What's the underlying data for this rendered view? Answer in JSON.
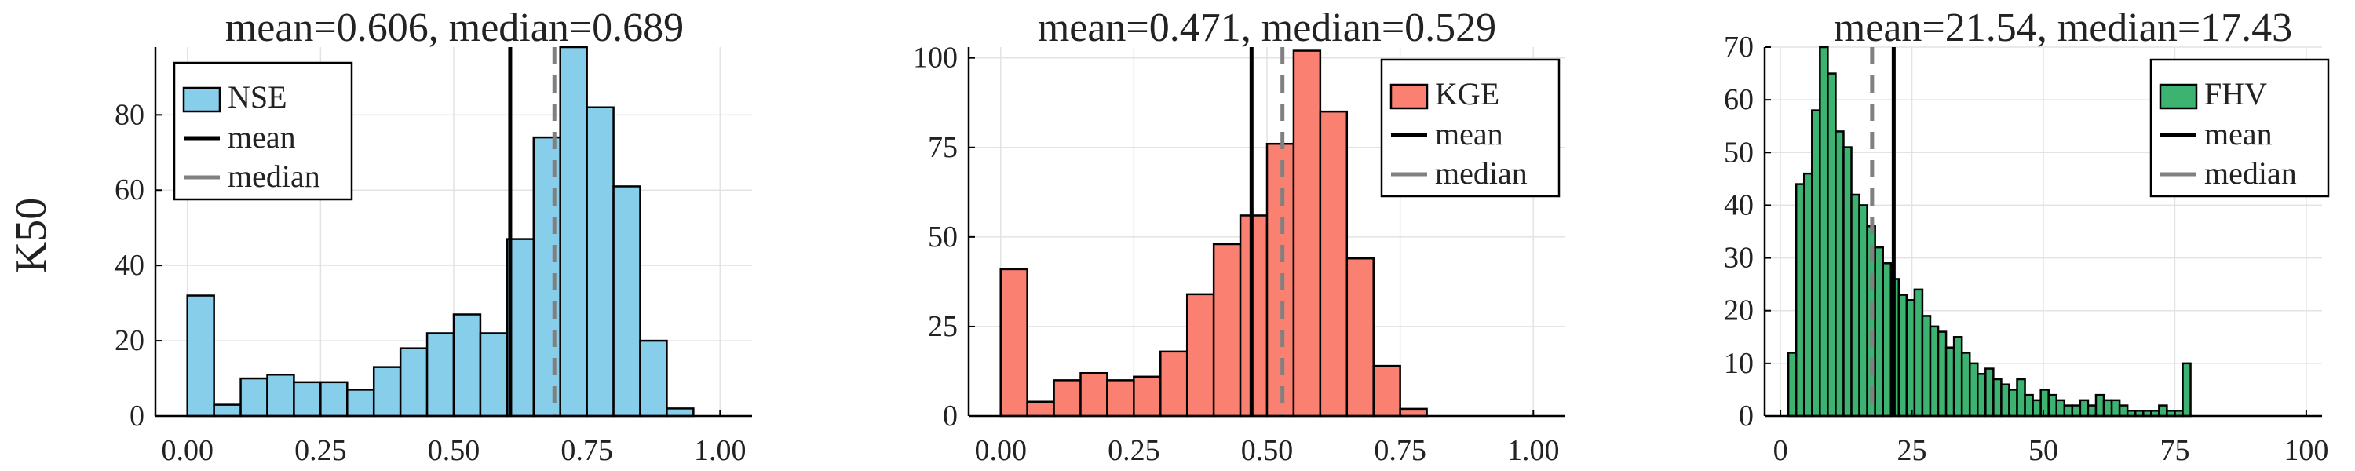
{
  "figure": {
    "row_label": "K50"
  },
  "colors": {
    "nse": "#87CEEB",
    "kge": "#FA8072",
    "fhv": "#3CB371",
    "mean": "#000000",
    "median": "#808080"
  },
  "chart_data": [
    {
      "type": "bar",
      "title": "mean=0.606, median=0.689",
      "xlabel": "",
      "ylabel": "K50",
      "xlim": [
        -0.06,
        1.06
      ],
      "ylim": [
        0,
        98
      ],
      "xticks": [
        0.0,
        0.25,
        0.5,
        0.75,
        1.0
      ],
      "xtick_labels": [
        "0.00",
        "0.25",
        "0.50",
        "0.75",
        "1.00"
      ],
      "yticks": [
        0,
        20,
        40,
        60,
        80
      ],
      "grid": true,
      "legend_position": "top-left",
      "bin_width": 0.05,
      "bin_starts": [
        0.0,
        0.05,
        0.1,
        0.15,
        0.2,
        0.25,
        0.3,
        0.35,
        0.4,
        0.45,
        0.5,
        0.55,
        0.6,
        0.65,
        0.7,
        0.75,
        0.8,
        0.85,
        0.9
      ],
      "counts": [
        32,
        3,
        10,
        11,
        9,
        9,
        7,
        13,
        18,
        22,
        27,
        22,
        47,
        74,
        98,
        82,
        61,
        20,
        2
      ],
      "mean": 0.606,
      "median": 0.689,
      "legend": [
        "NSE",
        "mean",
        "median"
      ]
    },
    {
      "type": "bar",
      "title": "mean=0.471, median=0.529",
      "xlabel": "",
      "ylabel": "",
      "xlim": [
        -0.06,
        1.06
      ],
      "ylim": [
        0,
        103
      ],
      "xticks": [
        0.0,
        0.25,
        0.5,
        0.75,
        1.0
      ],
      "xtick_labels": [
        "0.00",
        "0.25",
        "0.50",
        "0.75",
        "1.00"
      ],
      "yticks": [
        0,
        25,
        50,
        75,
        100
      ],
      "grid": true,
      "legend_position": "top-right",
      "bin_width": 0.05,
      "bin_starts": [
        0.0,
        0.05,
        0.1,
        0.15,
        0.2,
        0.25,
        0.3,
        0.35,
        0.4,
        0.45,
        0.5,
        0.55,
        0.6,
        0.65,
        0.7,
        0.75
      ],
      "counts": [
        41,
        4,
        10,
        12,
        10,
        11,
        18,
        34,
        48,
        56,
        76,
        102,
        85,
        44,
        14,
        2
      ],
      "mean": 0.471,
      "median": 0.529,
      "legend": [
        "KGE",
        "mean",
        "median"
      ]
    },
    {
      "type": "bar",
      "title": "mean=21.54, median=17.43",
      "xlabel": "",
      "ylabel": "",
      "xlim": [
        -3,
        103
      ],
      "ylim": [
        0,
        70
      ],
      "xticks": [
        0,
        25,
        50,
        75,
        100
      ],
      "xtick_labels": [
        "0",
        "25",
        "50",
        "75",
        "100"
      ],
      "yticks": [
        0,
        10,
        20,
        30,
        40,
        50,
        60,
        70
      ],
      "grid": true,
      "legend_position": "top-right",
      "bin_width": 1.5,
      "bin_starts": [
        1.5,
        3,
        4.5,
        6,
        7.5,
        9,
        10.5,
        12,
        13.5,
        15,
        16.5,
        18,
        19.5,
        21,
        22.5,
        24,
        25.5,
        27,
        28.5,
        30,
        31.5,
        33,
        34.5,
        36,
        37.5,
        39,
        40.5,
        42,
        43.5,
        45,
        46.5,
        48,
        49.5,
        51,
        52.5,
        54,
        55.5,
        57,
        58.5,
        60,
        61.5,
        63,
        64.5,
        66,
        67.5,
        69,
        70.5,
        72,
        73.5,
        75,
        76.5
      ],
      "counts": [
        12,
        44,
        46,
        58,
        70,
        65,
        54,
        51,
        42,
        40,
        36,
        32,
        29,
        26,
        23,
        22,
        24,
        19,
        17,
        16,
        13,
        15,
        12,
        10,
        8,
        9,
        7,
        6,
        5,
        7,
        4,
        3,
        5,
        4,
        3,
        2,
        2,
        3,
        2,
        4,
        3,
        3,
        2,
        1,
        1,
        1,
        1,
        2,
        1,
        1,
        10
      ],
      "mean": 21.54,
      "median": 17.43,
      "legend": [
        "FHV",
        "mean",
        "median"
      ]
    }
  ]
}
